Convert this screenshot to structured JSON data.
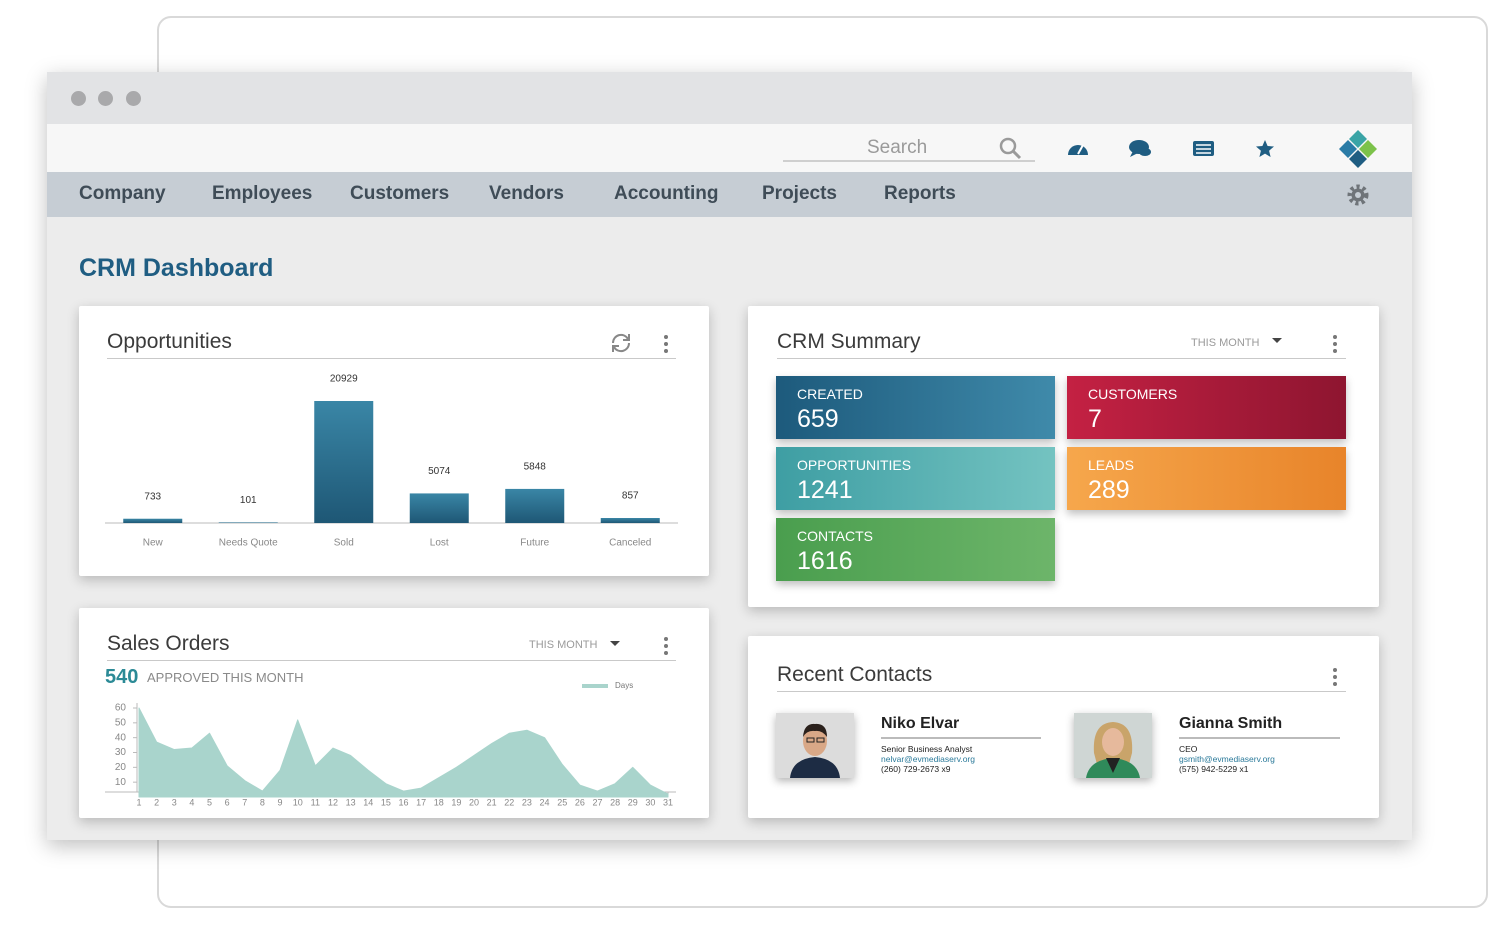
{
  "toolbar": {
    "search_placeholder": "Search"
  },
  "nav": [
    "Company",
    "Employees",
    "Customers",
    "Vendors",
    "Accounting",
    "Projects",
    "Reports"
  ],
  "page_title": "CRM Dashboard",
  "chart_data": [
    {
      "type": "bar",
      "title": "Opportunities",
      "categories": [
        "New",
        "Needs Quote",
        "Sold",
        "Lost",
        "Future",
        "Canceled"
      ],
      "values": [
        733,
        101,
        20929,
        5074,
        5848,
        857
      ],
      "color": "#3a86a6"
    },
    {
      "type": "area",
      "title": "Sales Orders",
      "x": [
        1,
        2,
        3,
        4,
        5,
        6,
        7,
        8,
        9,
        10,
        11,
        12,
        13,
        14,
        15,
        16,
        17,
        18,
        19,
        20,
        21,
        22,
        23,
        24,
        25,
        26,
        27,
        28,
        29,
        30,
        31
      ],
      "xlim": [
        1,
        31
      ],
      "xticks": [
        1,
        2,
        3,
        4,
        5,
        6,
        7,
        8,
        9,
        10,
        11,
        12,
        13,
        14,
        15,
        16,
        17,
        18,
        19,
        20,
        21,
        22,
        23,
        24,
        25,
        26,
        27,
        28,
        29,
        30,
        31
      ],
      "ylim": [
        0,
        60
      ],
      "yticks": [
        10,
        20,
        30,
        40,
        50,
        60
      ],
      "series": [
        {
          "name": "Days",
          "color": "#a9d4cc",
          "values": [
            60,
            37,
            32,
            33,
            43,
            21,
            11,
            4,
            18,
            52,
            21,
            33,
            28,
            18,
            9,
            4,
            6,
            13,
            20,
            28,
            36,
            43,
            45,
            40,
            22,
            8,
            4,
            9,
            20,
            8,
            2
          ]
        }
      ]
    }
  ],
  "sales_orders": {
    "period": "THIS MONTH",
    "approved_count": 540,
    "approved_label": "APPROVED THIS MONTH"
  },
  "crm_summary": {
    "title": "CRM Summary",
    "period": "THIS MONTH",
    "tiles": [
      {
        "label": "CREATED",
        "value": 659,
        "color": [
          "#1d5a7c",
          "#3f8aaa"
        ]
      },
      {
        "label": "CUSTOMERS",
        "value": 7,
        "color": [
          "#c42143",
          "#8e1530"
        ]
      },
      {
        "label": "OPPORTUNITIES",
        "value": 1241,
        "color": [
          "#3e9ea3",
          "#74c3c1"
        ]
      },
      {
        "label": "LEADS",
        "value": 289,
        "color": [
          "#f6a74c",
          "#e8842a"
        ]
      },
      {
        "label": "CONTACTS",
        "value": 1616,
        "color": [
          "#4a9e4e",
          "#6db56a"
        ]
      }
    ]
  },
  "recent_contacts": {
    "title": "Recent Contacts",
    "contacts": [
      {
        "name": "Niko Elvar",
        "title": "Senior Business Analyst",
        "email": "nelvar@evmediaserv.org",
        "phone": "(260) 729-2673 x9"
      },
      {
        "name": "Gianna Smith",
        "title": "CEO",
        "email": "gsmith@evmediaserv.org",
        "phone": "(575) 942-5229 x1"
      }
    ]
  }
}
